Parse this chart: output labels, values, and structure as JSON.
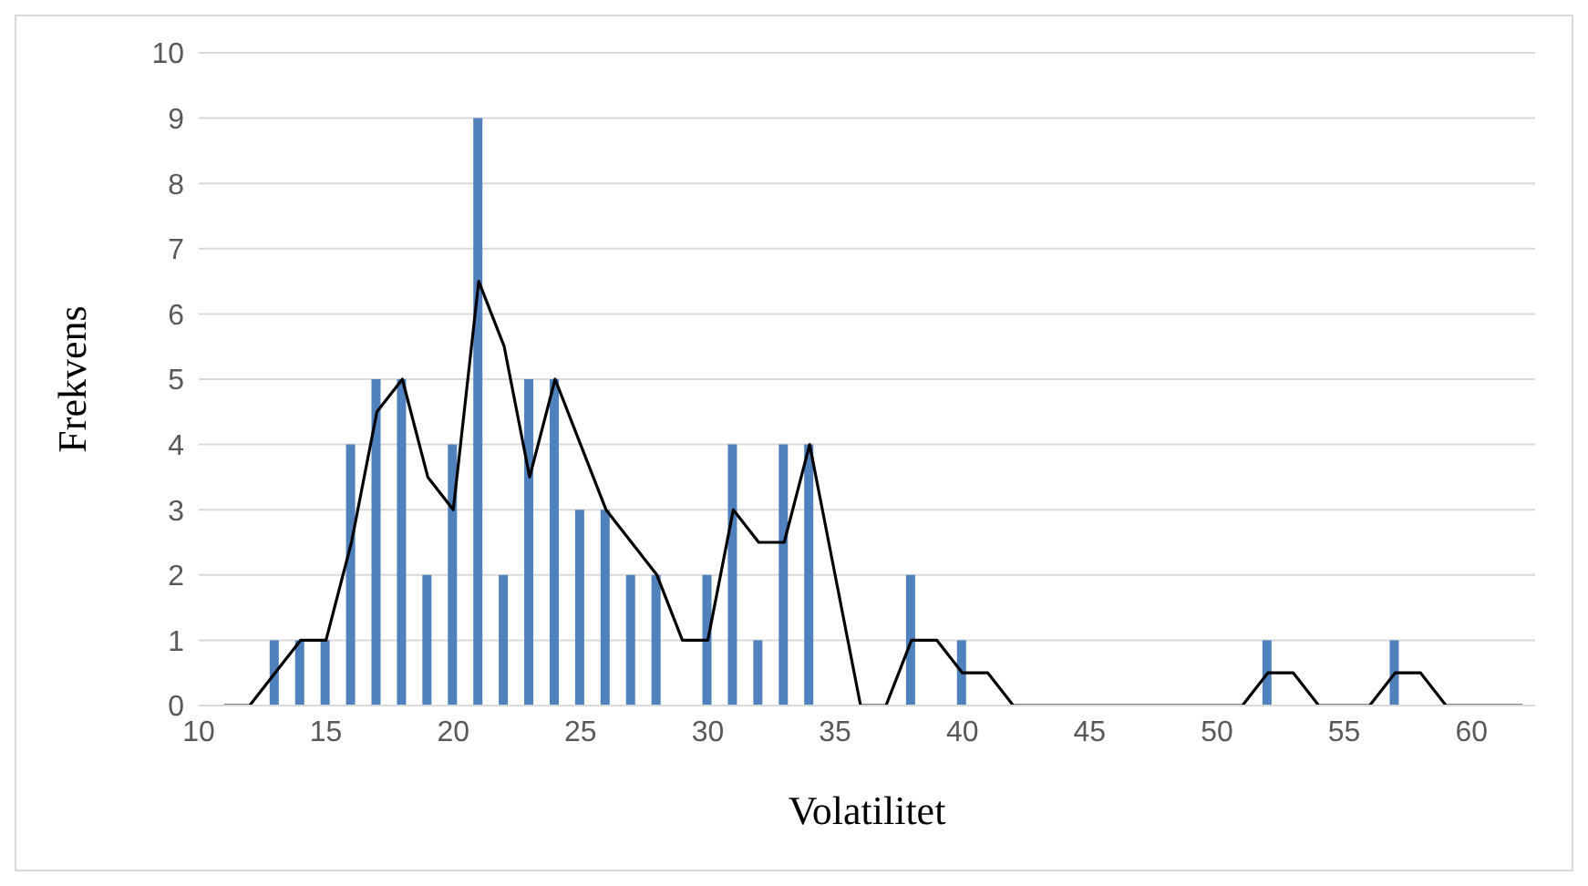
{
  "chart_data": {
    "type": "bar",
    "xlabel": "Volatilitet",
    "ylabel": "Frekvens",
    "xlim": [
      10,
      62.5
    ],
    "xticks": [
      10,
      15,
      20,
      25,
      30,
      35,
      40,
      45,
      50,
      55,
      60
    ],
    "ylim": [
      0,
      10
    ],
    "yticks": [
      0,
      1,
      2,
      3,
      4,
      5,
      6,
      7,
      8,
      9,
      10
    ],
    "grid": "y",
    "legend": false,
    "marker": "none",
    "line_style": "solid",
    "series": [
      {
        "color": "#4f81bd",
        "x": [
          13,
          14,
          15,
          16,
          17,
          18,
          19,
          20,
          21,
          22,
          23,
          24,
          25,
          26,
          27,
          28,
          30,
          31,
          32,
          33,
          34,
          38,
          40,
          52,
          57
        ],
        "values": [
          1,
          1,
          1,
          4,
          5,
          5,
          2,
          4,
          9,
          2,
          5,
          5,
          3,
          3,
          2,
          2,
          2,
          4,
          1,
          4,
          4,
          2,
          1,
          1,
          1
        ]
      },
      {
        "type": "line",
        "color": "#000000",
        "x": [
          11,
          12,
          13,
          14,
          15,
          16,
          17,
          18,
          19,
          20,
          21,
          22,
          23,
          24,
          25,
          26,
          27,
          28,
          29,
          30,
          31,
          32,
          33,
          34,
          35,
          36,
          37,
          38,
          39,
          40,
          41,
          42,
          43,
          44,
          45,
          46,
          47,
          48,
          49,
          50,
          51,
          52,
          53,
          54,
          55,
          56,
          57,
          58,
          59,
          60,
          61,
          62
        ],
        "values": [
          0,
          0,
          0.5,
          1,
          1,
          2.5,
          4.5,
          5,
          3.5,
          3,
          6.5,
          5.5,
          3.5,
          5,
          4,
          3,
          2.5,
          2,
          1,
          1,
          3,
          2.5,
          2.5,
          4,
          2,
          0,
          0,
          1,
          1,
          0.5,
          0.5,
          0,
          0,
          0,
          0,
          0,
          0,
          0,
          0,
          0,
          0,
          0.5,
          0.5,
          0,
          0,
          0,
          0.5,
          0.5,
          0,
          0,
          0,
          0
        ]
      }
    ]
  }
}
